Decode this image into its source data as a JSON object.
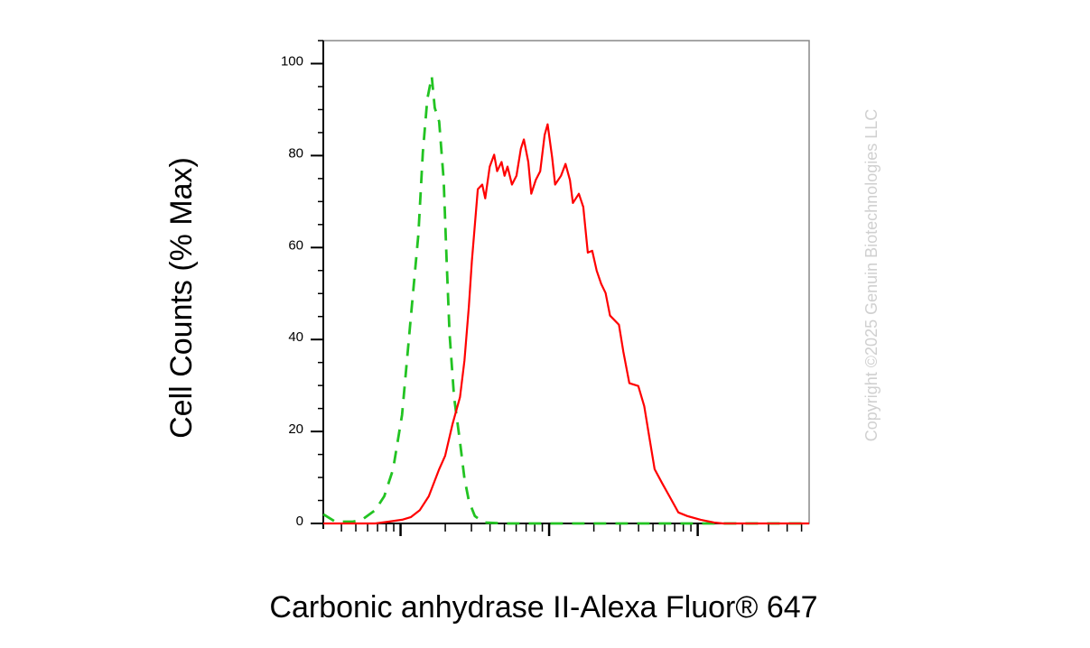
{
  "chart_data": {
    "type": "line",
    "x_label": "Carbonic anhydrase II-Alexa Fluor® 647",
    "y_label": "Cell Counts (% Max)",
    "watermark": "Copyright ©2025 Genuin Biotechnologies LLC",
    "xscale": "log10-decades",
    "xlim": [
      1.48,
      4.75
    ],
    "xticks": [
      2,
      3,
      4
    ],
    "ylim": [
      0,
      105
    ],
    "yticks": [
      0,
      20,
      40,
      60,
      80,
      100
    ],
    "series": [
      {
        "color": "#22c322",
        "style": "dashed",
        "x": [
          1.48,
          1.56,
          1.68,
          1.74,
          1.83,
          1.89,
          1.95,
          2.01,
          2.07,
          2.12,
          2.15,
          2.18,
          2.21,
          2.23,
          2.26,
          2.29,
          2.31,
          2.33,
          2.36,
          2.4,
          2.43,
          2.46,
          2.5,
          2.56,
          2.71,
          4.75
        ],
        "values": [
          2.0,
          0.4,
          0.4,
          0.8,
          2.9,
          5.9,
          11.8,
          23.6,
          45.2,
          62.9,
          80.6,
          92.3,
          97.2,
          90.4,
          87.4,
          74.7,
          57.0,
          41.3,
          27.5,
          17.7,
          9.8,
          4.9,
          1.6,
          0.2,
          0,
          0
        ]
      },
      {
        "color": "#ff0000",
        "style": "solid",
        "x": [
          1.48,
          1.83,
          1.92,
          2.01,
          2.07,
          2.13,
          2.19,
          2.26,
          2.3,
          2.35,
          2.4,
          2.43,
          2.46,
          2.48,
          2.52,
          2.55,
          2.57,
          2.6,
          2.63,
          2.65,
          2.68,
          2.7,
          2.72,
          2.75,
          2.78,
          2.81,
          2.83,
          2.86,
          2.88,
          2.91,
          2.94,
          2.97,
          2.99,
          3.02,
          3.04,
          3.08,
          3.11,
          3.14,
          3.16,
          3.2,
          3.23,
          3.26,
          3.29,
          3.32,
          3.35,
          3.38,
          3.41,
          3.44,
          3.47,
          3.5,
          3.54,
          3.6,
          3.64,
          3.67,
          3.71,
          3.76,
          3.81,
          3.87,
          3.93,
          4.02,
          4.11,
          4.17,
          4.75
        ],
        "values": [
          0,
          0,
          0.4,
          0.8,
          1.4,
          2.9,
          5.9,
          11.8,
          14.7,
          21.6,
          27.5,
          35.4,
          47.2,
          57.0,
          72.7,
          73.7,
          70.7,
          77.6,
          80.2,
          76.6,
          78.6,
          75.6,
          77.6,
          73.7,
          75.6,
          81.5,
          83.5,
          78.6,
          71.7,
          74.7,
          76.6,
          84.5,
          86.8,
          79.6,
          73.7,
          75.6,
          78.2,
          74.7,
          69.7,
          71.7,
          68.8,
          58.9,
          59.3,
          55.0,
          52.1,
          50.1,
          45.2,
          44.2,
          43.2,
          37.3,
          30.5,
          29.9,
          25.5,
          19.6,
          11.8,
          8.8,
          5.9,
          2.4,
          1.6,
          0.8,
          0.2,
          0,
          0
        ]
      }
    ]
  }
}
